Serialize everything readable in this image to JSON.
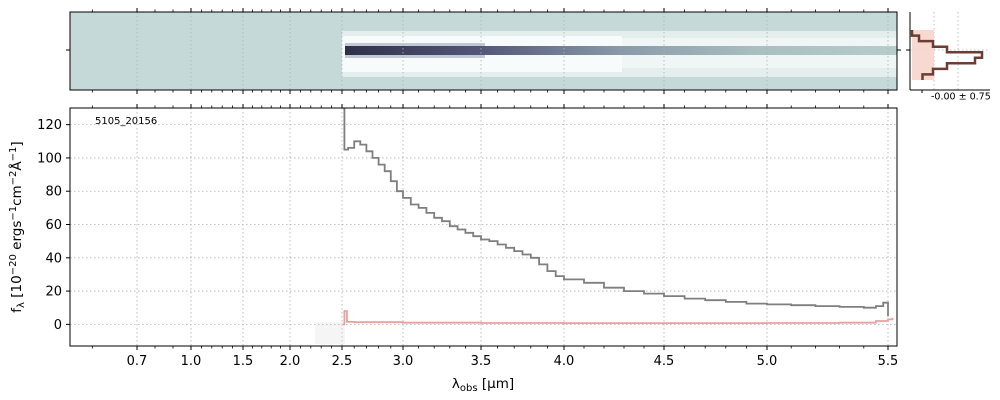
{
  "chart_data": [
    {
      "type": "heatmap",
      "panel": "2D spectrum",
      "xlim": [
        0.55,
        5.52
      ],
      "y_ticks": [
        ""
      ],
      "color_map": "bone_r",
      "background_color": "#c5dad8"
    },
    {
      "type": "line",
      "panel": "spatial profile",
      "x_ticks": [
        ""
      ],
      "annotation": "-0.00 ± 0.75",
      "profile_color": "#6b3d34",
      "fill_color": "#f6d5cc",
      "profile": [
        0.0,
        0.1,
        0.3,
        0.5,
        1.0,
        0.9,
        0.5,
        0.3,
        0.15
      ]
    },
    {
      "type": "line",
      "panel": "1D spectrum",
      "annotation": "5105_20156",
      "xlabel": "λ_obs [μm]",
      "xlabel_parts": {
        "main": "λ",
        "sub": "obs",
        "unit": " [μm]"
      },
      "ylabel": "f_λ [10^-20 ergs^-1cm^-2Å^-1]",
      "ylabel_parts": {
        "f": "f",
        "f_sub": "λ",
        "a": " [10",
        "a_sup": "−20",
        "b": " ergs",
        "b_sup": "−1",
        "c": "cm",
        "c_sup": "−2",
        "d": "Å",
        "d_sup": "−1",
        "e": "]"
      },
      "ylim": [
        -13,
        130
      ],
      "xlim": [
        0.55,
        5.52
      ],
      "y_ticks": [
        0,
        20,
        40,
        60,
        80,
        100,
        120
      ],
      "x_ticks": [
        0.7,
        1.0,
        1.5,
        2.0,
        2.5,
        3.0,
        3.5,
        4.0,
        4.5,
        5.0,
        5.5
      ],
      "x_tick_labels": [
        "0.7",
        "1.0",
        "1.5",
        "2.0",
        "2.5",
        "3.0",
        "3.5",
        "4.0",
        "4.5",
        "5.0",
        "5.5"
      ],
      "grid": true,
      "series": [
        {
          "color": "#7f7f7f",
          "x": [
            2.51,
            2.52,
            2.55,
            2.6,
            2.65,
            2.7,
            2.75,
            2.8,
            2.85,
            2.9,
            2.95,
            3.0,
            3.05,
            3.1,
            3.15,
            3.2,
            3.25,
            3.3,
            3.35,
            3.4,
            3.45,
            3.5,
            3.55,
            3.6,
            3.65,
            3.7,
            3.75,
            3.8,
            3.85,
            3.9,
            3.95,
            4.0,
            4.1,
            4.2,
            4.3,
            4.4,
            4.5,
            4.6,
            4.7,
            4.8,
            4.9,
            5.0,
            5.1,
            5.2,
            5.3,
            5.4,
            5.45,
            5.48,
            5.5
          ],
          "y": [
            130,
            105,
            106,
            110,
            108,
            104,
            100,
            96,
            92,
            86,
            80,
            76,
            72,
            70,
            67,
            64,
            62,
            59,
            57,
            55,
            53,
            51,
            50,
            48,
            46,
            44,
            42,
            40,
            36,
            32,
            29,
            27,
            25,
            22,
            20,
            18.5,
            17,
            15.5,
            14.5,
            13.5,
            12.5,
            12,
            11.5,
            11,
            10.5,
            10,
            11,
            13,
            5
          ]
        },
        {
          "color": "#e8a0a0",
          "x": [
            2.51,
            2.52,
            2.54,
            2.6,
            3.0,
            3.5,
            4.0,
            4.5,
            5.0,
            5.3,
            5.45,
            5.5,
            5.51
          ],
          "y": [
            0,
            8,
            1.5,
            1.3,
            1.0,
            0.8,
            0.7,
            0.7,
            0.8,
            1.0,
            2.0,
            3.0,
            4.0
          ]
        }
      ]
    }
  ]
}
